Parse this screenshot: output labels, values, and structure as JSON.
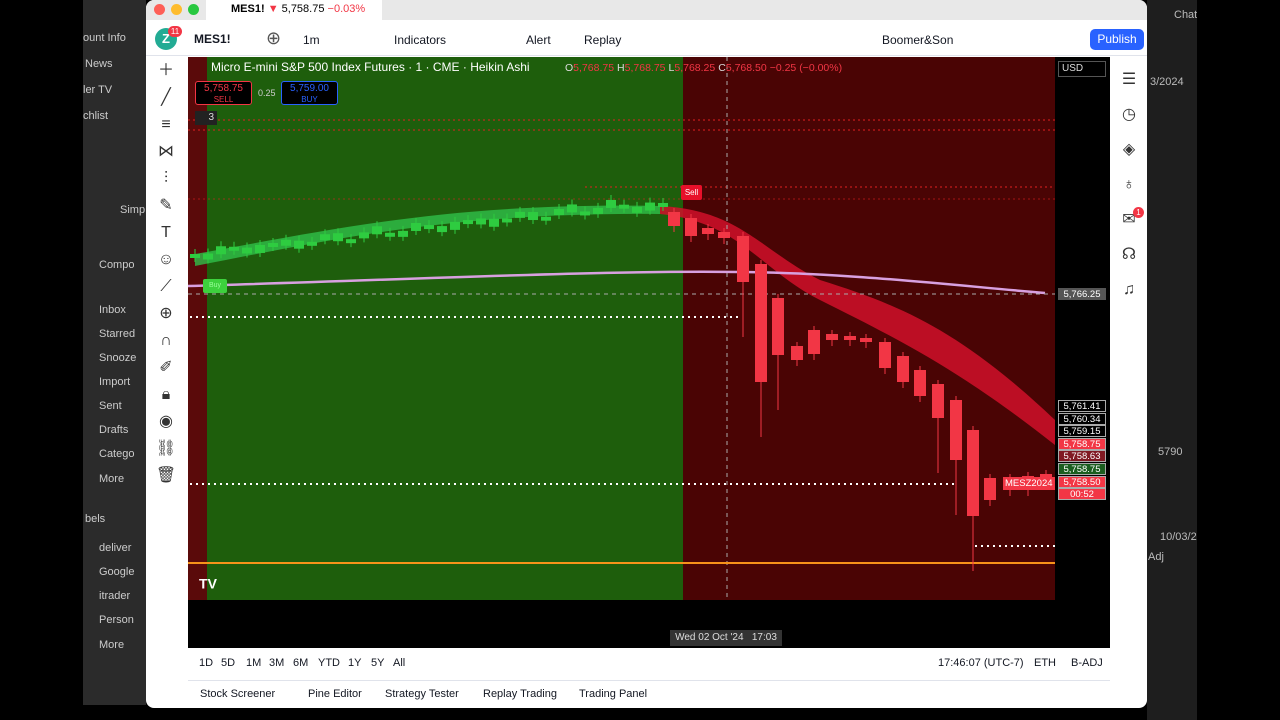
{
  "window_tab": {
    "symbol": "MES1!",
    "arrow": "▼",
    "price": "5,758.75",
    "change": "−0.03%"
  },
  "toolbar": {
    "avatar": "Z",
    "badge": "11",
    "symbol": "MES1!",
    "interval": "1m",
    "indicators": "Indicators",
    "alert": "Alert",
    "replay": "Replay",
    "layout": "Boomer&Son",
    "publish": "Publish"
  },
  "chart_header": {
    "title": "Micro E-mini S&P 500 Index Futures · 1 · CME · Heikin Ashi",
    "ohlc": [
      {
        "label": "O",
        "value": "5,768.75"
      },
      {
        "label": "H",
        "value": "5,768.75"
      },
      {
        "label": "L",
        "value": "5,768.25"
      },
      {
        "label": "C",
        "value": "5,768.50"
      }
    ],
    "change": "−0.25 (−0.00%)",
    "currency": "USD"
  },
  "trade": {
    "sell_price": "5,758.75",
    "sell": "SELL",
    "spread": "0.25",
    "buy_price": "5,759.00",
    "buy": "BUY"
  },
  "indicator_count": "3",
  "signals": {
    "sell": "Sell",
    "buy": "Buy"
  },
  "crosshair_price": "5,766.25",
  "price_labels": [
    {
      "text": "5,761.41",
      "color": "#000000"
    },
    {
      "text": "5,760.34",
      "color": "#000000"
    },
    {
      "text": "5,759.15",
      "color": "#000000"
    },
    {
      "text": "5,758.75",
      "color": "#f23645"
    },
    {
      "text": "5,758.63",
      "color": "#801922"
    },
    {
      "text": "5,758.75",
      "color": "#1b5e20"
    },
    {
      "text": "5,758.50",
      "color": "#f23645"
    },
    {
      "text": "00:52",
      "color": "#f23645"
    }
  ],
  "symbol_tag": "MESZ2024",
  "time_axis": {
    "date": "Wed 02 Oct '24",
    "time": "17:03"
  },
  "ranges": [
    "1D",
    "5D",
    "1M",
    "3M",
    "6M",
    "YTD",
    "1Y",
    "5Y",
    "All"
  ],
  "status": {
    "time": "17:46:07 (UTC-7)",
    "session": "ETH",
    "adjust": "B-ADJ"
  },
  "panels": [
    "Stock Screener",
    "Pine Editor",
    "Strategy Tester",
    "Replay Trading",
    "Trading Panel"
  ],
  "notifications_badge": "1",
  "background": {
    "left": [
      "ount Info",
      "News",
      "ler TV",
      "chlist",
      "Simp",
      "Compo",
      "Inbox",
      "Starred",
      "Snooze",
      "Import",
      "Sent",
      "Drafts",
      "Catego",
      "More",
      "bels",
      "deliver",
      "Google",
      "itrader",
      "Person",
      "More"
    ],
    "right": [
      "Chat",
      "3/2024",
      "5790",
      "10/03/2",
      "Adj"
    ]
  }
}
